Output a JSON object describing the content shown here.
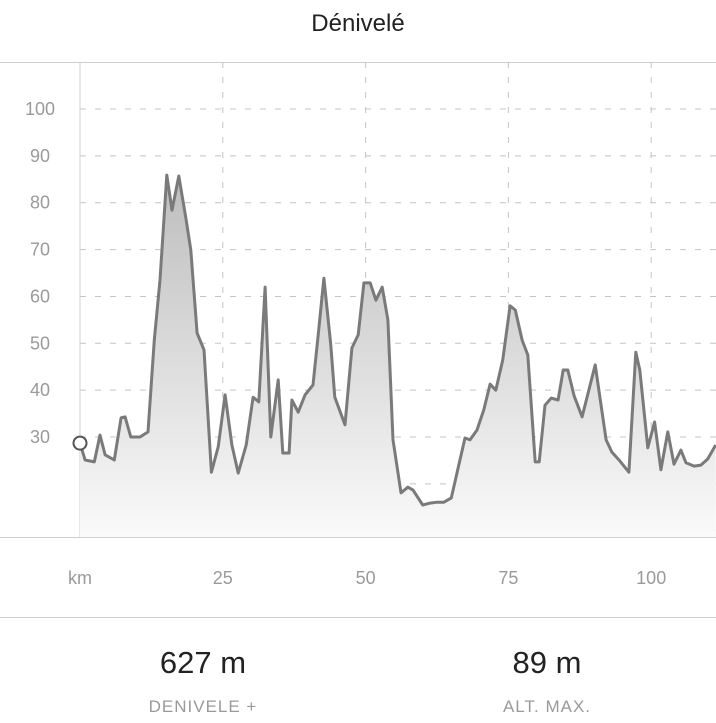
{
  "header": {
    "title": "Dénivelé"
  },
  "chart_data": {
    "type": "area",
    "title": "Dénivelé",
    "xlabel": "km",
    "ylabel": "",
    "xlim": [
      0,
      111.3
    ],
    "ylim": [
      8.5,
      110
    ],
    "grid": true,
    "x_ticks": [
      25,
      50,
      75,
      100
    ],
    "y_ticks": [
      30,
      40,
      50,
      60,
      70,
      80,
      90,
      100
    ],
    "line_color": "#7a7a7a",
    "fill_color": "#c8c8c8",
    "x": [
      0,
      0.9,
      2.5,
      3.5,
      4.4,
      6.0,
      7.2,
      7.9,
      8.9,
      10.5,
      11.9,
      13.0,
      14.0,
      15.2,
      16.1,
      17.3,
      18.6,
      19.4,
      20.5,
      21.7,
      23.0,
      24.2,
      25.4,
      26.6,
      27.7,
      29.1,
      30.3,
      31.3,
      32.4,
      33.4,
      34.7,
      35.5,
      36.6,
      37.1,
      38.2,
      39.4,
      40.8,
      41.7,
      42.7,
      43.9,
      44.6,
      46.4,
      47.6,
      48.7,
      49.7,
      50.8,
      51.8,
      52.9,
      53.9,
      54.8,
      56.2,
      57.4,
      58.3,
      60.0,
      61.3,
      62.5,
      63.7,
      65.0,
      66.4,
      67.4,
      68.3,
      69.5,
      70.7,
      71.8,
      72.8,
      74.0,
      75.3,
      76.2,
      77.4,
      78.4,
      79.7,
      80.4,
      81.4,
      82.5,
      83.7,
      84.6,
      85.4,
      86.5,
      87.9,
      90.2,
      92.1,
      93.1,
      94.5,
      96.1,
      97.3,
      98.0,
      99.4,
      100.6,
      101.7,
      102.9,
      104.0,
      105.2,
      106.1,
      107.5,
      108.7,
      109.9,
      111.3
    ],
    "y": [
      28.7,
      25.1,
      24.7,
      30.4,
      26.2,
      25.1,
      34.1,
      34.3,
      30.0,
      30.0,
      31.1,
      50.7,
      63.5,
      85.9,
      78.4,
      85.7,
      76.3,
      69.9,
      52.2,
      48.6,
      22.5,
      27.9,
      39.0,
      28.3,
      22.3,
      28.3,
      38.5,
      37.5,
      62.0,
      30.0,
      42.2,
      26.6,
      26.6,
      37.9,
      35.3,
      39.0,
      41.1,
      51.8,
      63.9,
      49.6,
      38.5,
      32.6,
      49.0,
      51.8,
      62.9,
      62.9,
      59.2,
      62.0,
      55.0,
      29.4,
      18.1,
      19.3,
      18.7,
      15.5,
      15.9,
      16.1,
      16.1,
      17.0,
      24.5,
      29.8,
      29.4,
      31.5,
      35.8,
      41.3,
      40.0,
      46.4,
      58.0,
      57.1,
      50.7,
      47.5,
      24.7,
      24.7,
      36.8,
      38.3,
      37.9,
      44.3,
      44.3,
      38.8,
      34.3,
      45.4,
      29.4,
      26.8,
      24.9,
      22.5,
      48.1,
      44.3,
      27.7,
      33.2,
      23.0,
      31.1,
      24.2,
      27.2,
      24.5,
      23.8,
      24.0,
      25.3,
      28.3
    ]
  },
  "stats": [
    {
      "value": "627 m",
      "label": "DENIVELE +"
    },
    {
      "value": "89 m",
      "label": "ALT. MAX."
    }
  ]
}
